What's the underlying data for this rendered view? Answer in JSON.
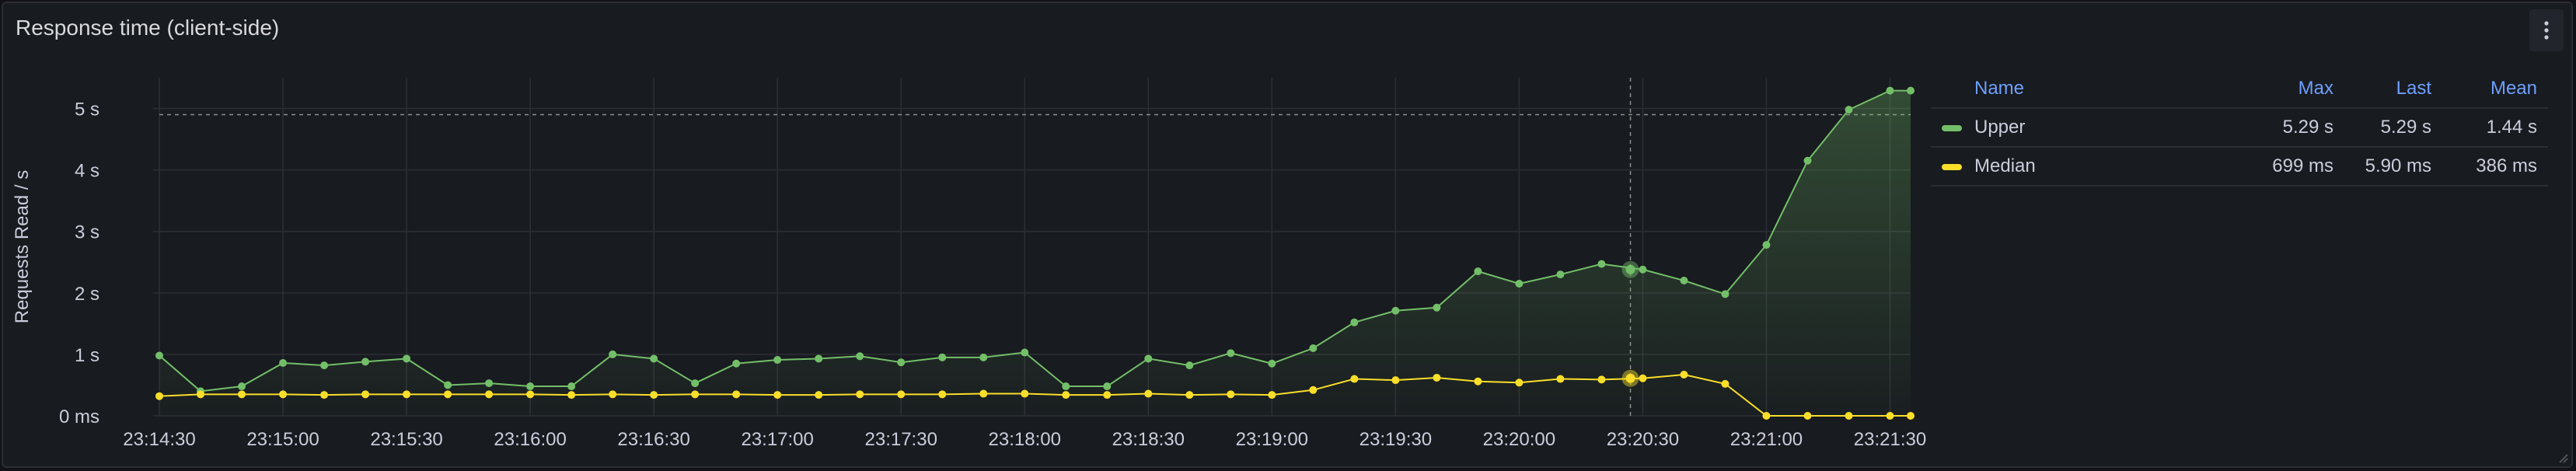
{
  "panel": {
    "title": "Response time (client-side)",
    "menu_icon": "vertical-dots-icon"
  },
  "colors": {
    "background": "#181b1f",
    "upper": "#73bf69",
    "median": "#fade2a",
    "grid": "#2c2f35",
    "text": "#ccccdc",
    "legend_header": "#6e9fff"
  },
  "legend": {
    "headers": {
      "name": "Name",
      "max": "Max",
      "last": "Last",
      "mean": "Mean"
    },
    "rows": [
      {
        "name": "Upper",
        "max": "5.29 s",
        "last": "5.29 s",
        "mean": "1.44 s",
        "color": "#73bf69"
      },
      {
        "name": "Median",
        "max": "699 ms",
        "last": "5.90 ms",
        "mean": "386 ms",
        "color": "#fade2a"
      }
    ]
  },
  "chart_data": {
    "type": "line",
    "ylabel": "Requests Read / s",
    "ylim": [
      0,
      5.5
    ],
    "yticks": [
      0,
      1,
      2,
      3,
      4,
      5
    ],
    "ytick_labels": [
      "0 ms",
      "1 s",
      "2 s",
      "3 s",
      "4 s",
      "5 s"
    ],
    "xlim": [
      "23:14:30",
      "23:21:35"
    ],
    "xtick_labels": [
      "23:14:30",
      "23:15:00",
      "23:15:30",
      "23:16:00",
      "23:16:30",
      "23:17:00",
      "23:17:30",
      "23:18:00",
      "23:18:30",
      "23:19:00",
      "23:19:30",
      "23:20:00",
      "23:20:30",
      "23:21:00",
      "23:21:30"
    ],
    "threshold": 4.9,
    "crosshair_x": "23:20:27",
    "grid": true,
    "legend": "right",
    "x": [
      "23:14:30",
      "23:14:40",
      "23:14:50",
      "23:15:00",
      "23:15:10",
      "23:15:20",
      "23:15:30",
      "23:15:40",
      "23:15:50",
      "23:16:00",
      "23:16:10",
      "23:16:20",
      "23:16:30",
      "23:16:40",
      "23:16:50",
      "23:17:00",
      "23:17:10",
      "23:17:20",
      "23:17:30",
      "23:17:40",
      "23:17:50",
      "23:18:00",
      "23:18:10",
      "23:18:20",
      "23:18:30",
      "23:18:40",
      "23:18:50",
      "23:19:00",
      "23:19:10",
      "23:19:20",
      "23:19:30",
      "23:19:40",
      "23:19:50",
      "23:20:00",
      "23:20:10",
      "23:20:20",
      "23:20:30",
      "23:20:40",
      "23:20:50",
      "23:21:00",
      "23:21:10",
      "23:21:20",
      "23:21:30",
      "23:21:35"
    ],
    "series": [
      {
        "name": "Upper",
        "color": "#73bf69",
        "values": [
          0.98,
          0.4,
          0.48,
          0.86,
          0.82,
          0.88,
          0.93,
          0.5,
          0.53,
          0.48,
          0.48,
          1.0,
          0.93,
          0.53,
          0.85,
          0.91,
          0.93,
          0.97,
          0.87,
          0.95,
          0.95,
          1.03,
          0.48,
          0.48,
          0.93,
          0.82,
          1.02,
          0.85,
          1.1,
          1.52,
          1.71,
          1.76,
          2.35,
          2.15,
          2.3,
          2.47,
          2.38,
          2.2,
          1.98,
          2.78,
          4.15,
          4.98,
          5.29,
          5.29
        ]
      },
      {
        "name": "Median",
        "color": "#fade2a",
        "values": [
          0.32,
          0.35,
          0.35,
          0.35,
          0.34,
          0.35,
          0.35,
          0.35,
          0.35,
          0.35,
          0.34,
          0.35,
          0.34,
          0.35,
          0.35,
          0.34,
          0.34,
          0.35,
          0.35,
          0.35,
          0.36,
          0.36,
          0.34,
          0.34,
          0.36,
          0.34,
          0.35,
          0.34,
          0.42,
          0.6,
          0.58,
          0.62,
          0.56,
          0.54,
          0.6,
          0.59,
          0.61,
          0.67,
          0.52,
          0.0,
          0.0,
          0.0,
          0.0,
          0.0
        ]
      }
    ]
  }
}
